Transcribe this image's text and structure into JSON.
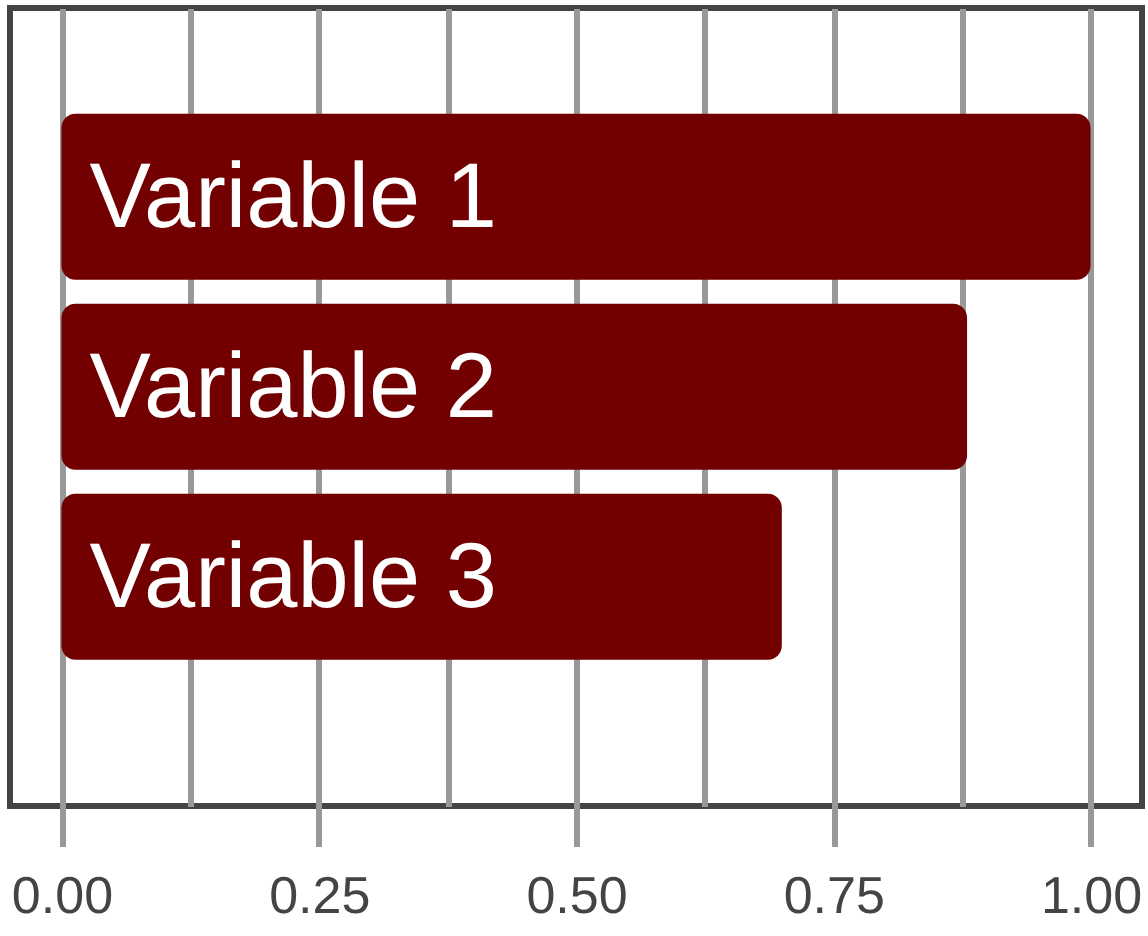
{
  "chart_data": {
    "type": "bar",
    "orientation": "horizontal",
    "categories": [
      "Variable 1",
      "Variable 2",
      "Variable 3"
    ],
    "values": [
      1.0,
      0.88,
      0.7
    ],
    "color": "#730000",
    "xlim": [
      -0.05,
      1.05
    ],
    "xticks": [
      {
        "value": 0,
        "label": "0.00"
      },
      {
        "value": 0.125,
        "label": null
      },
      0.25,
      {
        "value": 0.375,
        "label": null
      },
      {
        "value": 0.5,
        "label": "0.50"
      },
      {
        "value": 0.625,
        "label": null
      },
      0.75,
      {
        "value": 0.875,
        "label": null
      },
      {
        "value": 1,
        "label": "1.00"
      }
    ],
    "grid": "x"
  }
}
